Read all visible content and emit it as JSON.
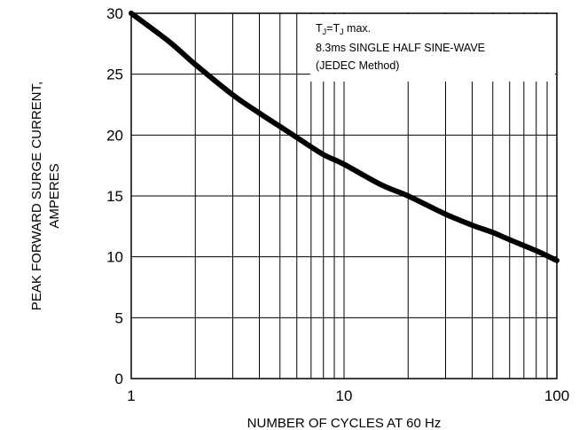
{
  "chart_data": {
    "type": "line",
    "x_scale": "log",
    "xlim": [
      1,
      100
    ],
    "ylim": [
      0,
      30
    ],
    "x_ticks": [
      "1",
      "10",
      "100"
    ],
    "y_ticks": [
      "0",
      "5",
      "10",
      "15",
      "20",
      "25",
      "30"
    ],
    "xlabel": "NUMBER OF CYCLES AT 60 Hz",
    "ylabel": [
      "PEAK FORWARD SURGE CURRENT,",
      "AMPERES"
    ],
    "grid": true,
    "annotation": [
      "8.3ms SINGLE HALF SINE-WAVE",
      "(JEDEC Method)"
    ],
    "annotation_condition": {
      "main": "T",
      "sub": "J",
      "eq": "=T",
      "sub2": "J",
      "tail": " max."
    },
    "series": [
      {
        "x": [
          1,
          1.5,
          2,
          3,
          4,
          5,
          6,
          8,
          10,
          15,
          20,
          30,
          40,
          50,
          60,
          80,
          100
        ],
        "y": [
          30,
          27.7,
          25.8,
          23.3,
          21.8,
          20.7,
          19.8,
          18.4,
          17.6,
          15.9,
          15.0,
          13.5,
          12.6,
          12.0,
          11.4,
          10.5,
          9.7
        ]
      }
    ],
    "line_color": "#000000",
    "grid_color": "#000000"
  }
}
